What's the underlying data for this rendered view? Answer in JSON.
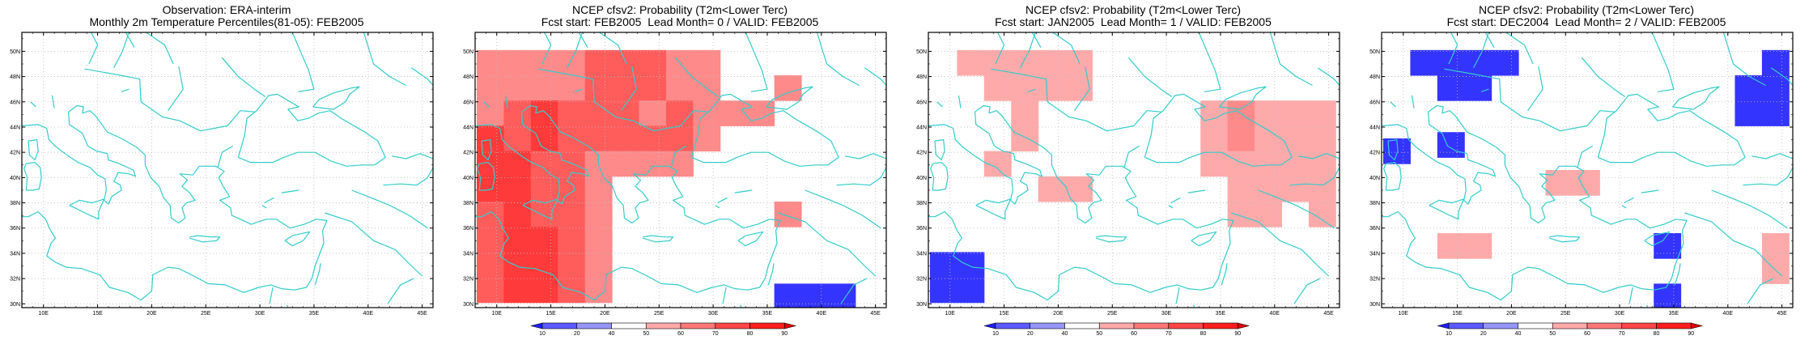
{
  "map": {
    "lon_range": [
      8,
      46
    ],
    "lat_range": [
      29.7,
      51.5
    ],
    "lon_ticks": [
      10,
      15,
      20,
      25,
      30,
      35,
      40,
      45
    ],
    "lat_ticks": [
      30,
      32,
      34,
      36,
      38,
      40,
      42,
      44,
      46,
      48,
      50
    ],
    "coast_color": "#33cccc",
    "grid_style": "dotted"
  },
  "legend": {
    "labels": [
      "10",
      "20",
      "40",
      "50",
      "60",
      "70",
      "80",
      "90"
    ],
    "colors": [
      "#1e1eff",
      "#5a5aff",
      "#9696ff",
      "#ffffff",
      "#ffaaaa",
      "#ff7878",
      "#ff4646",
      "#ff1e1e",
      "#dd0000"
    ]
  },
  "panels": [
    {
      "title1": "Observation: ERA-interim",
      "title2": "Monthly 2m Temperature Percentiles(81-05): FEB2005",
      "has_colorbar": false,
      "cells": []
    },
    {
      "title1": "NCEP cfsv2: Probability (T2m<Lower Terc)",
      "title2": "Fcst start: FEB2005  Lead Month= 0 / VALID: FEB2005",
      "has_colorbar": true,
      "cells": [
        {
          "lon": 9.4,
          "lat": 49.1,
          "p": 55
        },
        {
          "lon": 11.9,
          "lat": 49.1,
          "p": 55
        },
        {
          "lon": 14.4,
          "lat": 49.1,
          "p": 55
        },
        {
          "lon": 16.9,
          "lat": 49.1,
          "p": 55
        },
        {
          "lon": 19.4,
          "lat": 49.1,
          "p": 65
        },
        {
          "lon": 21.9,
          "lat": 49.1,
          "p": 65
        },
        {
          "lon": 24.4,
          "lat": 49.1,
          "p": 65
        },
        {
          "lon": 26.9,
          "lat": 49.1,
          "p": 55
        },
        {
          "lon": 29.4,
          "lat": 49.1,
          "p": 55
        },
        {
          "lon": 9.4,
          "lat": 47.1,
          "p": 55
        },
        {
          "lon": 11.9,
          "lat": 47.1,
          "p": 55
        },
        {
          "lon": 14.4,
          "lat": 47.1,
          "p": 55
        },
        {
          "lon": 16.9,
          "lat": 47.1,
          "p": 55
        },
        {
          "lon": 19.4,
          "lat": 47.1,
          "p": 65
        },
        {
          "lon": 21.9,
          "lat": 47.1,
          "p": 65
        },
        {
          "lon": 24.4,
          "lat": 47.1,
          "p": 65
        },
        {
          "lon": 26.9,
          "lat": 47.1,
          "p": 55
        },
        {
          "lon": 29.4,
          "lat": 47.1,
          "p": 55
        },
        {
          "lon": 36.9,
          "lat": 47.1,
          "p": 55
        },
        {
          "lon": 9.4,
          "lat": 45.1,
          "p": 55
        },
        {
          "lon": 11.9,
          "lat": 45.1,
          "p": 65
        },
        {
          "lon": 14.4,
          "lat": 45.1,
          "p": 75
        },
        {
          "lon": 16.9,
          "lat": 45.1,
          "p": 65
        },
        {
          "lon": 19.4,
          "lat": 45.1,
          "p": 65
        },
        {
          "lon": 21.9,
          "lat": 45.1,
          "p": 65
        },
        {
          "lon": 24.4,
          "lat": 45.1,
          "p": 55
        },
        {
          "lon": 26.9,
          "lat": 45.1,
          "p": 65
        },
        {
          "lon": 29.4,
          "lat": 45.1,
          "p": 55
        },
        {
          "lon": 31.9,
          "lat": 45.1,
          "p": 55
        },
        {
          "lon": 34.4,
          "lat": 45.1,
          "p": 55
        },
        {
          "lon": 9.4,
          "lat": 43.1,
          "p": 75
        },
        {
          "lon": 11.9,
          "lat": 43.1,
          "p": 65
        },
        {
          "lon": 14.4,
          "lat": 43.1,
          "p": 75
        },
        {
          "lon": 16.9,
          "lat": 43.1,
          "p": 65
        },
        {
          "lon": 19.4,
          "lat": 43.1,
          "p": 65
        },
        {
          "lon": 21.9,
          "lat": 43.1,
          "p": 65
        },
        {
          "lon": 24.4,
          "lat": 43.1,
          "p": 65
        },
        {
          "lon": 26.9,
          "lat": 43.1,
          "p": 65
        },
        {
          "lon": 29.4,
          "lat": 43.1,
          "p": 55
        },
        {
          "lon": 9.4,
          "lat": 41.1,
          "p": 75
        },
        {
          "lon": 11.9,
          "lat": 41.1,
          "p": 75
        },
        {
          "lon": 14.4,
          "lat": 41.1,
          "p": 65
        },
        {
          "lon": 16.9,
          "lat": 41.1,
          "p": 65
        },
        {
          "lon": 19.4,
          "lat": 41.1,
          "p": 55
        },
        {
          "lon": 21.9,
          "lat": 41.1,
          "p": 55
        },
        {
          "lon": 24.4,
          "lat": 41.1,
          "p": 55
        },
        {
          "lon": 26.9,
          "lat": 41.1,
          "p": 55
        },
        {
          "lon": 9.4,
          "lat": 39.1,
          "p": 75
        },
        {
          "lon": 11.9,
          "lat": 39.1,
          "p": 75
        },
        {
          "lon": 14.4,
          "lat": 39.1,
          "p": 65
        },
        {
          "lon": 16.9,
          "lat": 39.1,
          "p": 65
        },
        {
          "lon": 19.4,
          "lat": 39.1,
          "p": 55
        },
        {
          "lon": 9.4,
          "lat": 37.1,
          "p": 65
        },
        {
          "lon": 11.9,
          "lat": 37.1,
          "p": 75
        },
        {
          "lon": 14.4,
          "lat": 37.1,
          "p": 65
        },
        {
          "lon": 16.9,
          "lat": 37.1,
          "p": 65
        },
        {
          "lon": 19.4,
          "lat": 37.1,
          "p": 55
        },
        {
          "lon": 36.9,
          "lat": 37.1,
          "p": 55
        },
        {
          "lon": 9.4,
          "lat": 35.1,
          "p": 65
        },
        {
          "lon": 11.9,
          "lat": 35.1,
          "p": 75
        },
        {
          "lon": 14.4,
          "lat": 35.1,
          "p": 75
        },
        {
          "lon": 16.9,
          "lat": 35.1,
          "p": 65
        },
        {
          "lon": 19.4,
          "lat": 35.1,
          "p": 55
        },
        {
          "lon": 9.4,
          "lat": 33.1,
          "p": 65
        },
        {
          "lon": 11.9,
          "lat": 33.1,
          "p": 75
        },
        {
          "lon": 14.4,
          "lat": 33.1,
          "p": 75
        },
        {
          "lon": 16.9,
          "lat": 33.1,
          "p": 65
        },
        {
          "lon": 19.4,
          "lat": 33.1,
          "p": 55
        },
        {
          "lon": 9.4,
          "lat": 31.1,
          "p": 65
        },
        {
          "lon": 11.9,
          "lat": 31.1,
          "p": 75
        },
        {
          "lon": 14.4,
          "lat": 31.1,
          "p": 75
        },
        {
          "lon": 16.9,
          "lat": 31.1,
          "p": 65
        },
        {
          "lon": 19.4,
          "lat": 31.1,
          "p": 55
        },
        {
          "lon": 36.9,
          "lat": 30.6,
          "p": 15
        },
        {
          "lon": 39.4,
          "lat": 30.6,
          "p": 15
        },
        {
          "lon": 41.9,
          "lat": 30.6,
          "p": 15
        }
      ]
    },
    {
      "title1": "NCEP cfsv2: Probability (T2m<Lower Terc)",
      "title2": "Fcst start: JAN2005  Lead Month= 1 / VALID: FEB2005",
      "has_colorbar": true,
      "cells": [
        {
          "lon": 11.9,
          "lat": 49.1,
          "p": 45
        },
        {
          "lon": 14.4,
          "lat": 49.1,
          "p": 45
        },
        {
          "lon": 16.9,
          "lat": 49.1,
          "p": 45
        },
        {
          "lon": 19.4,
          "lat": 49.1,
          "p": 45
        },
        {
          "lon": 21.9,
          "lat": 49.1,
          "p": 45
        },
        {
          "lon": 14.4,
          "lat": 47.1,
          "p": 45
        },
        {
          "lon": 16.9,
          "lat": 47.1,
          "p": 45
        },
        {
          "lon": 19.4,
          "lat": 47.1,
          "p": 45
        },
        {
          "lon": 21.9,
          "lat": 47.1,
          "p": 45
        },
        {
          "lon": 16.9,
          "lat": 45.1,
          "p": 45
        },
        {
          "lon": 34.4,
          "lat": 45.1,
          "p": 45
        },
        {
          "lon": 36.9,
          "lat": 45.1,
          "p": 55
        },
        {
          "lon": 39.4,
          "lat": 45.1,
          "p": 45
        },
        {
          "lon": 41.9,
          "lat": 45.1,
          "p": 45
        },
        {
          "lon": 44.4,
          "lat": 45.1,
          "p": 45
        },
        {
          "lon": 16.9,
          "lat": 43.1,
          "p": 45
        },
        {
          "lon": 34.4,
          "lat": 43.1,
          "p": 45
        },
        {
          "lon": 36.9,
          "lat": 43.1,
          "p": 55
        },
        {
          "lon": 39.4,
          "lat": 43.1,
          "p": 45
        },
        {
          "lon": 41.9,
          "lat": 43.1,
          "p": 45
        },
        {
          "lon": 44.4,
          "lat": 43.1,
          "p": 45
        },
        {
          "lon": 14.4,
          "lat": 41.1,
          "p": 45
        },
        {
          "lon": 34.4,
          "lat": 41.1,
          "p": 45
        },
        {
          "lon": 36.9,
          "lat": 41.1,
          "p": 45
        },
        {
          "lon": 39.4,
          "lat": 41.1,
          "p": 45
        },
        {
          "lon": 41.9,
          "lat": 41.1,
          "p": 45
        },
        {
          "lon": 44.4,
          "lat": 41.1,
          "p": 45
        },
        {
          "lon": 19.4,
          "lat": 39.1,
          "p": 45
        },
        {
          "lon": 21.9,
          "lat": 39.1,
          "p": 45
        },
        {
          "lon": 36.9,
          "lat": 39.1,
          "p": 45
        },
        {
          "lon": 39.4,
          "lat": 39.1,
          "p": 45
        },
        {
          "lon": 41.9,
          "lat": 39.1,
          "p": 45
        },
        {
          "lon": 44.4,
          "lat": 39.1,
          "p": 45
        },
        {
          "lon": 36.9,
          "lat": 37.1,
          "p": 45
        },
        {
          "lon": 39.4,
          "lat": 37.1,
          "p": 45
        },
        {
          "lon": 44.4,
          "lat": 37.1,
          "p": 45
        },
        {
          "lon": 9.4,
          "lat": 33.1,
          "p": 15
        },
        {
          "lon": 11.9,
          "lat": 33.1,
          "p": 15
        },
        {
          "lon": 9.4,
          "lat": 31.1,
          "p": 15
        },
        {
          "lon": 11.9,
          "lat": 31.1,
          "p": 15
        }
      ]
    },
    {
      "title1": "NCEP cfsv2: Probability (T2m<Lower Terc)",
      "title2": "Fcst start: DEC2004  Lead Month= 2 / VALID: FEB2005",
      "has_colorbar": true,
      "cells": [
        {
          "lon": 11.9,
          "lat": 49.1,
          "p": 15
        },
        {
          "lon": 14.4,
          "lat": 49.1,
          "p": 15
        },
        {
          "lon": 16.9,
          "lat": 49.1,
          "p": 15
        },
        {
          "lon": 19.4,
          "lat": 49.1,
          "p": 15
        },
        {
          "lon": 44.4,
          "lat": 49.1,
          "p": 15
        },
        {
          "lon": 14.4,
          "lat": 47.1,
          "p": 15
        },
        {
          "lon": 16.9,
          "lat": 47.1,
          "p": 15
        },
        {
          "lon": 41.9,
          "lat": 47.1,
          "p": 15
        },
        {
          "lon": 44.4,
          "lat": 47.1,
          "p": 15
        },
        {
          "lon": 41.9,
          "lat": 45.1,
          "p": 15
        },
        {
          "lon": 44.4,
          "lat": 45.1,
          "p": 15
        },
        {
          "lon": 9.4,
          "lat": 42.1,
          "p": 15
        },
        {
          "lon": 14.4,
          "lat": 42.6,
          "p": 15
        },
        {
          "lon": 24.4,
          "lat": 39.6,
          "p": 45
        },
        {
          "lon": 26.9,
          "lat": 39.6,
          "p": 45
        },
        {
          "lon": 14.4,
          "lat": 34.6,
          "p": 45
        },
        {
          "lon": 16.9,
          "lat": 34.6,
          "p": 45
        },
        {
          "lon": 34.4,
          "lat": 34.6,
          "p": 15
        },
        {
          "lon": 44.4,
          "lat": 34.6,
          "p": 45
        },
        {
          "lon": 44.4,
          "lat": 32.6,
          "p": 45
        },
        {
          "lon": 34.4,
          "lat": 30.6,
          "p": 15
        }
      ]
    }
  ]
}
